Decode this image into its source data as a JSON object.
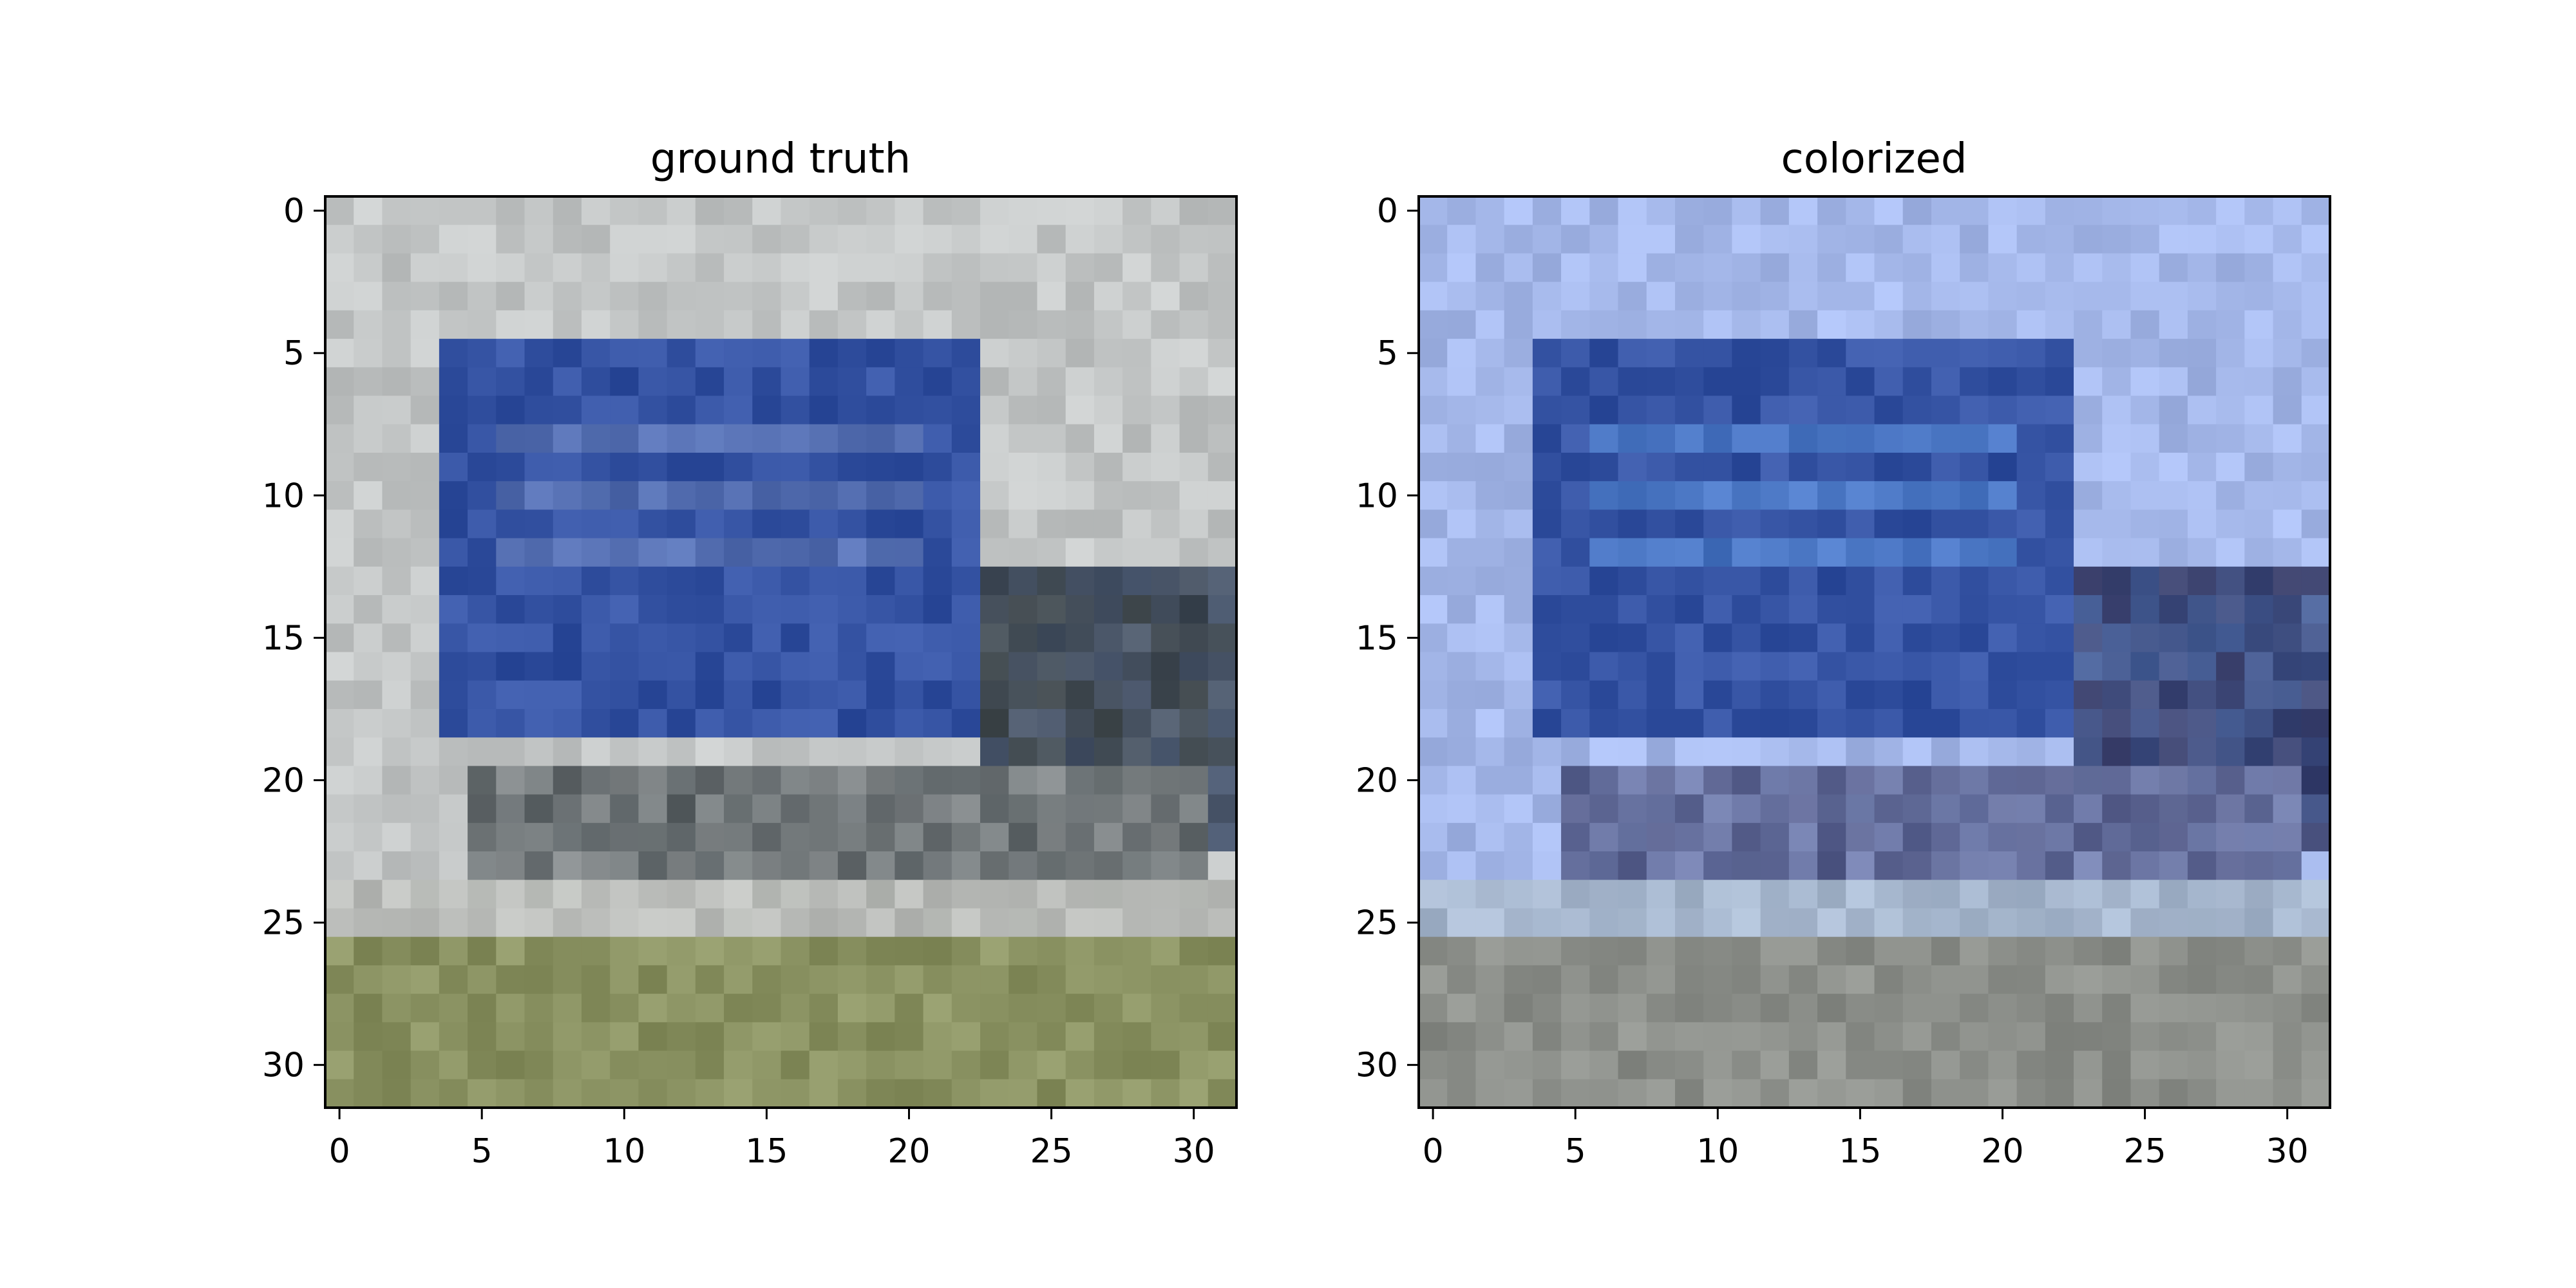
{
  "figure": {
    "panels": [
      {
        "title": "ground truth",
        "x_ticks": [
          "0",
          "5",
          "10",
          "15",
          "20",
          "25",
          "30"
        ],
        "y_ticks": [
          "0",
          "5",
          "10",
          "15",
          "20",
          "25",
          "30"
        ],
        "image_description_colors": {
          "sky": "#c3c6c6",
          "sign": "#3553a3",
          "sign_light": "#6f86be",
          "grass": "#8a9262",
          "road": "#b9bbb7",
          "shadow": "#3c4448"
        }
      },
      {
        "title": "colorized",
        "x_ticks": [
          "0",
          "5",
          "10",
          "15",
          "20",
          "25",
          "30"
        ],
        "y_ticks": [
          "0",
          "5",
          "10",
          "15",
          "20",
          "25",
          "30"
        ],
        "image_description_colors": {
          "sky": "#a5b8ea",
          "sign": "#3553a3",
          "sign_light": "#5c93de",
          "grass": "#8c8f8a",
          "road": "#a8b8c8",
          "shadow": "#3b3f6a"
        }
      }
    ]
  }
}
